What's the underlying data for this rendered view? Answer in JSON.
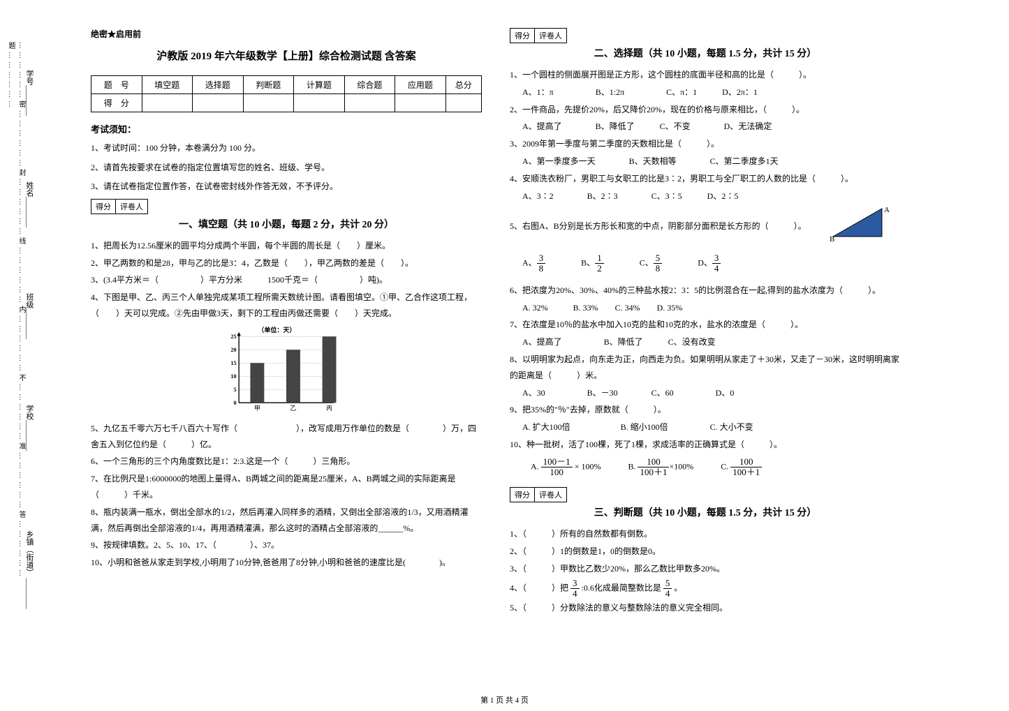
{
  "sidebar": {
    "labels": [
      "乡镇（街道）",
      "学校",
      "班级",
      "姓名",
      "学号"
    ],
    "dashline": "………………密………………封………………线………………内………………不………………准………………答………………题………………"
  },
  "header": {
    "secret": "绝密★启用前",
    "title": "沪教版 2019 年六年级数学【上册】综合检测试题  含答案"
  },
  "score_table": {
    "headers": [
      "题　号",
      "填空题",
      "选择题",
      "判断题",
      "计算题",
      "综合题",
      "应用题",
      "总分"
    ],
    "row_label": "得　分"
  },
  "notice": {
    "heading": "考试须知：",
    "items": [
      "1、考试时间：100 分钟，本卷满分为 100 分。",
      "2、请首先按要求在试卷的指定位置填写您的姓名、班级、学号。",
      "3、请在试卷指定位置作答，在试卷密封线外作答无效，不予评分。"
    ]
  },
  "scorebox": {
    "a": "得分",
    "b": "评卷人"
  },
  "section1": {
    "title": "一、填空题（共 10 小题，每题 2 分，共计 20 分）",
    "q1": "1、把周长为12.56厘米的圆平均分成两个半圆，每个半圆的周长是（　　）厘米。",
    "q2": "2、甲乙两数的和是28，甲与乙的比是3：4，乙数是（　　），甲乙两数的差是（　　）。",
    "q3": "3、(3.4平方米＝（　　　　　）平方分米　　　1500千克＝（　　　　　）吨)。",
    "q4": "4、下图是甲、乙、丙三个人单独完成某项工程所需天数统计图。请看图填空。①甲、乙合作这项工程，（　　）天可以完成。②先由甲做3天，剩下的工程由丙做还需要（　　）天完成。",
    "chart": {
      "unit_label": "（单位：天）",
      "y_ticks": [
        25,
        20,
        15,
        10,
        5,
        0
      ],
      "bars": [
        {
          "label": "甲",
          "value": 15,
          "color": "#444444"
        },
        {
          "label": "乙",
          "value": 20,
          "color": "#444444"
        },
        {
          "label": "丙",
          "value": 25,
          "color": "#444444"
        }
      ],
      "width": 170,
      "height": 120,
      "bg": "#ffffff",
      "axis": "#000000",
      "grid": "#888888"
    },
    "q5": "5、九亿五千零六万七千八百六十写作（　　　　　　　），改写成用万作单位的数是（　　　　）万，四舍五入到亿位约是（　　　）亿。",
    "q6": "6、一个三角形的三个内角度数比是1：2:3.这是一个（　　　）三角形。",
    "q7": "7、在比例尺是1:6000000的地图上量得A、B两城之间的距离是25厘米，A、B两城之间的实际距离是（　　　）千米。",
    "q8": "8、瓶内装满一瓶水，倒出全部水的1/2，然后再灌入同样多的酒精，又倒出全部溶液的1/3，又用酒精灌满，然后再倒出全部溶液的1/4，再用酒精灌满，那么这时的酒精占全部溶液的______%。",
    "q9": "9、按规律填数。2、5、10、17、（　　　　）、37。",
    "q10": "10、小明和爸爸从家走到学校,小明用了10分钟,爸爸用了8分钟,小明和爸爸的速度比是(　　　　)。"
  },
  "section2": {
    "title": "二、选择题（共 10 小题，每题 1.5 分，共计 15 分）",
    "q1": "1、一个圆柱的侧面展开图是正方形，这个圆柱的底面半径和高的比是（　　　）。",
    "q1o": "A、1：π　　　　　B、1:2π　　　　　C、π：1　　　D、2π：1",
    "q2": "2、一件商品，先提价20%，后又降价20%，现在的价格与原来相比，（　　　）。",
    "q2o": "A、提高了　　　　B、降低了　　　C、不变　　　　D、无法确定",
    "q3": "3、2009年第一季度与第二季度的天数相比是（　　　）。",
    "q3o": "A、第一季度多一天　　　　B、天数相等　　　　C、第二季度多1天",
    "q4": "4、安顺洗衣粉厂，男职工与女职工的比是3∶2，男职工与全厂职工的人数的比是（　　　）。",
    "q4o": "A、3∶2　　　　B、2∶3　　　　C、3∶5　　　D、2∶5",
    "q5": "5、右图A、B分别是长方形长和宽的中点，阴影部分面积是长方形的（　　　）。",
    "q5o": {
      "A": [
        "3",
        "8"
      ],
      "B": [
        "1",
        "2"
      ],
      "C": [
        "5",
        "8"
      ],
      "D": [
        "3",
        "4"
      ]
    },
    "q6": "6、把浓度为20%、30%、40%的三种盐水按2：3：5的比例混合在一起,得到的盐水浓度为（　　　）。",
    "q6o": "A. 32%　　　B. 33%　　C. 34%　　D. 35%",
    "q7": "7、在浓度是10％的盐水中加入10克的盐和10克的水，盐水的浓度是（　　　）。",
    "q7o": "A、提高了　　　　　B、降低了　　　C、没有改变",
    "q8": "8、以明明家为起点，向东走为正，向西走为负。如果明明从家走了＋30米，又走了－30米，这时明明离家的距离是（　　　）米。",
    "q8o": "A、30　　　　　B、－30　　　　C、60　　　　　D、0",
    "q9": "9、把35%的\"％\"去掉，原数就（　　　）。",
    "q9o": "A. 扩大100倍　　　　　　B. 缩小100倍　　　　　C. 大小不变",
    "q10": "10、种一批树，活了100棵，死了1棵，求成活率的正确算式是（　　　）。",
    "q10o": {
      "A": {
        "num": "100－1",
        "den": "100",
        "tail": " × 100%"
      },
      "B": {
        "num": "100",
        "den": "100＋1",
        "tail": "×100%"
      },
      "C": {
        "num": "100",
        "den": "100＋1",
        "tail": ""
      }
    }
  },
  "section3": {
    "title": "三、判断题（共 10 小题，每题 1.5 分，共计 15 分）",
    "q1": "1、（　　　）所有的自然数都有倒数。",
    "q2": "2、（　　　）1的倒数是1，0的倒数是0。",
    "q3": "3、（　　　）甲数比乙数少20%，那么乙数比甲数多20%。",
    "q4a": "4、（　　　）把",
    "q4frac1": [
      "3",
      "4"
    ],
    "q4mid": ":0.6化成最简整数比是",
    "q4frac2": [
      "5",
      "4"
    ],
    "q4b": "。",
    "q5": "5、（　　　）分数除法的意义与整数除法的意义完全相同。"
  },
  "footer": "第 1 页 共 4 页",
  "triangle": {
    "fill": "#2b5aa0",
    "labelA": "A",
    "labelB": "B"
  }
}
